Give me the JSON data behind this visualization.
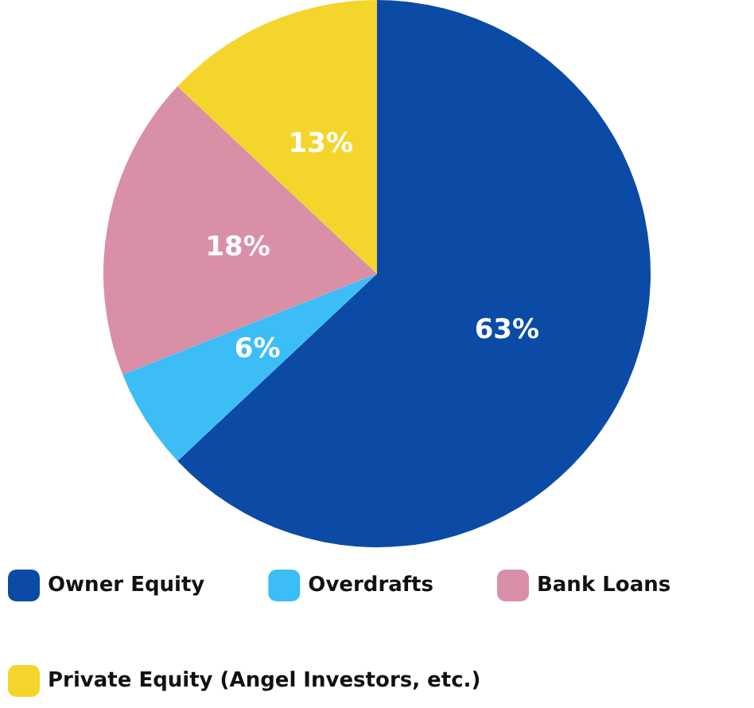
{
  "chart_data": {
    "type": "pie",
    "categories": [
      "Owner Equity",
      "Overdrafts",
      "Bank Loans",
      "Private Equity (Angel Investors, etc.)"
    ],
    "values": [
      63,
      6,
      18,
      13
    ],
    "colors": [
      "#0b4ba6",
      "#3dbdf5",
      "#d98fa6",
      "#f4d52b"
    ],
    "legend": "bottom",
    "value_labels": [
      "63%",
      "6%",
      "18%",
      "13%"
    ]
  }
}
